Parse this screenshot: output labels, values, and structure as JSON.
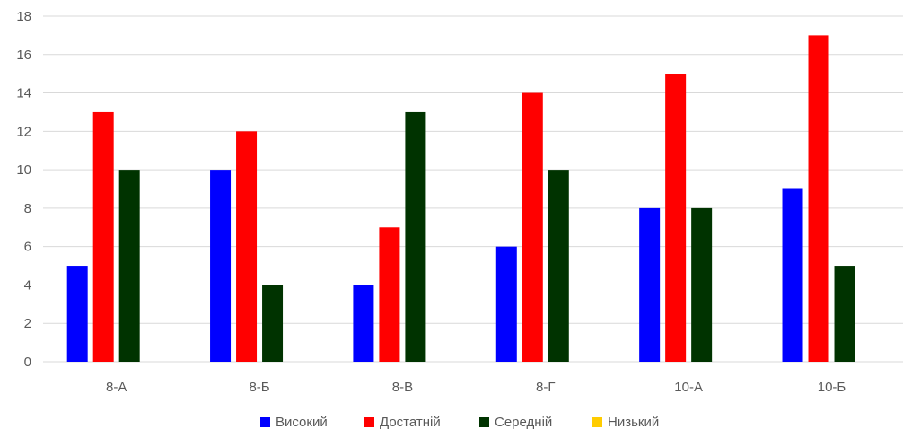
{
  "chart_data": {
    "type": "bar",
    "categories": [
      "8-А",
      "8-Б",
      "8-В",
      "8-Г",
      "10-А",
      "10-Б"
    ],
    "series": [
      {
        "name": "Високий",
        "color": "#0000ff",
        "values": [
          5,
          10,
          4,
          6,
          8,
          9
        ]
      },
      {
        "name": "Достатній",
        "color": "#ff0000",
        "values": [
          13,
          12,
          7,
          14,
          15,
          17
        ]
      },
      {
        "name": "Середній",
        "color": "#003300",
        "values": [
          10,
          4,
          13,
          10,
          8,
          5
        ]
      },
      {
        "name": "Низький",
        "color": "#ffcc00",
        "values": [
          0,
          0,
          0,
          0,
          0,
          0
        ]
      }
    ],
    "y_ticks": [
      0,
      2,
      4,
      6,
      8,
      10,
      12,
      14,
      16,
      18
    ],
    "ylim": [
      0,
      18
    ],
    "grid": true,
    "legend_position": "bottom"
  }
}
